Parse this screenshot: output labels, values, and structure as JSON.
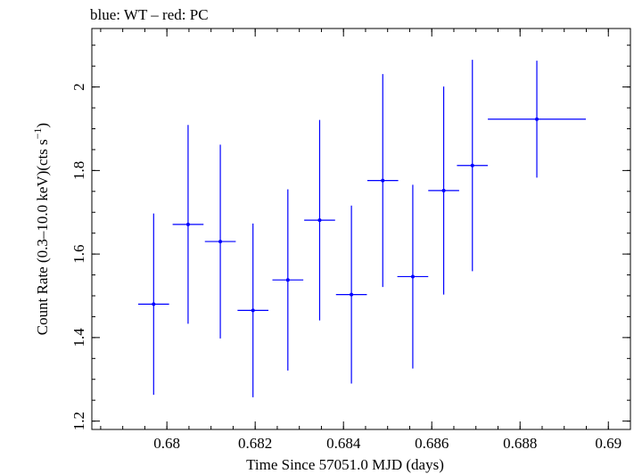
{
  "chart_data": {
    "type": "scatter",
    "title": "blue: WT – red: PC",
    "xlabel": "Time Since 57051.0 MJD (days)",
    "ylabel": {
      "main": "Count Rate (0.3–10.0 keV)(cts s",
      "sup": "−1",
      "close": ")"
    },
    "xlim": [
      0.6783,
      0.6905
    ],
    "ylim": [
      1.18,
      2.14
    ],
    "xticks": {
      "major": [
        0.68,
        0.682,
        0.684,
        0.686,
        0.688,
        0.69
      ],
      "labels": [
        "0.68",
        "0.682",
        "0.684",
        "0.686",
        "0.688",
        "0.69"
      ],
      "minor_step": 0.0005
    },
    "yticks": {
      "major": [
        1.2,
        1.4,
        1.6,
        1.8,
        2.0
      ],
      "labels": [
        "1.2",
        "1.4",
        "1.6",
        "1.8",
        "2"
      ],
      "minor_step": 0.05
    },
    "series": [
      {
        "name": "WT",
        "color": "#0000ff",
        "points": [
          {
            "x": 0.6797,
            "xerr": 0.00035,
            "y": 1.48,
            "yerr_lo": 0.217,
            "yerr_hi": 0.217
          },
          {
            "x": 0.68048,
            "xerr": 0.00035,
            "y": 1.671,
            "yerr_lo": 0.238,
            "yerr_hi": 0.238
          },
          {
            "x": 0.68121,
            "xerr": 0.00035,
            "y": 1.63,
            "yerr_lo": 0.232,
            "yerr_hi": 0.232
          },
          {
            "x": 0.68195,
            "xerr": 0.00035,
            "y": 1.465,
            "yerr_lo": 0.208,
            "yerr_hi": 0.208
          },
          {
            "x": 0.68274,
            "xerr": 0.00035,
            "y": 1.538,
            "yerr_lo": 0.217,
            "yerr_hi": 0.217
          },
          {
            "x": 0.68346,
            "xerr": 0.00035,
            "y": 1.681,
            "yerr_lo": 0.24,
            "yerr_hi": 0.24
          },
          {
            "x": 0.68418,
            "xerr": 0.00035,
            "y": 1.503,
            "yerr_lo": 0.213,
            "yerr_hi": 0.213
          },
          {
            "x": 0.68489,
            "xerr": 0.00035,
            "y": 1.776,
            "yerr_lo": 0.255,
            "yerr_hi": 0.255
          },
          {
            "x": 0.68557,
            "xerr": 0.00035,
            "y": 1.546,
            "yerr_lo": 0.22,
            "yerr_hi": 0.22
          },
          {
            "x": 0.68627,
            "xerr": 0.00035,
            "y": 1.752,
            "yerr_lo": 0.249,
            "yerr_hi": 0.249
          },
          {
            "x": 0.68692,
            "xerr": 0.00035,
            "y": 1.812,
            "yerr_lo": 0.253,
            "yerr_hi": 0.253
          },
          {
            "x": 0.68838,
            "xerr": 0.00111,
            "y": 1.923,
            "yerr_lo": 0.14,
            "yerr_hi": 0.14
          }
        ]
      }
    ]
  }
}
